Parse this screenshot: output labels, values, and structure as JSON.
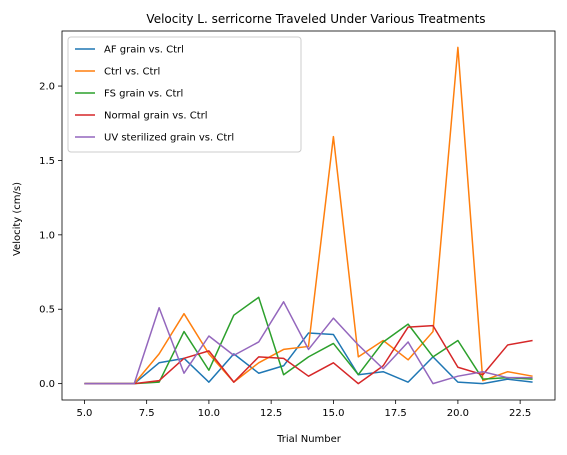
{
  "chart_data": {
    "type": "line",
    "title": "Velocity L. serricorne Traveled Under Various Treatments",
    "xlabel": "Trial Number",
    "ylabel": "Velocity (cm/s)",
    "xlim": [
      4.1,
      23.9
    ],
    "ylim": [
      -0.11,
      2.37
    ],
    "xticks": [
      5.0,
      7.5,
      10.0,
      12.5,
      15.0,
      17.5,
      20.0,
      22.5
    ],
    "xtick_labels": [
      "5.0",
      "7.5",
      "10.0",
      "12.5",
      "15.0",
      "17.5",
      "20.0",
      "22.5"
    ],
    "yticks": [
      0.0,
      0.5,
      1.0,
      1.5,
      2.0
    ],
    "ytick_labels": [
      "0.0",
      "0.5",
      "1.0",
      "1.5",
      "2.0"
    ],
    "grid": false,
    "legend_position": "top-left",
    "x": [
      5,
      6,
      7,
      8,
      9,
      10,
      11,
      12,
      13,
      14,
      15,
      16,
      17,
      18,
      19,
      20,
      21,
      22,
      23
    ],
    "series": [
      {
        "name": "AF grain vs. Ctrl",
        "color": "#1f77b4",
        "values": [
          0.0,
          0.0,
          0.0,
          0.14,
          0.17,
          0.01,
          0.2,
          0.07,
          0.12,
          0.34,
          0.33,
          0.06,
          0.08,
          0.01,
          0.18,
          0.01,
          0.0,
          0.03,
          0.01
        ]
      },
      {
        "name": "Ctrl vs. Ctrl",
        "color": "#ff7f0e",
        "values": [
          0.0,
          0.0,
          0.0,
          0.2,
          0.47,
          0.2,
          0.01,
          0.14,
          0.23,
          0.25,
          1.66,
          0.18,
          0.29,
          0.16,
          0.35,
          2.26,
          0.02,
          0.08,
          0.05
        ]
      },
      {
        "name": "FS grain vs. Ctrl",
        "color": "#2ca02c",
        "values": [
          0.0,
          0.0,
          0.0,
          0.01,
          0.35,
          0.09,
          0.46,
          0.58,
          0.06,
          0.18,
          0.27,
          0.06,
          0.28,
          0.4,
          0.18,
          0.29,
          0.03,
          0.04,
          0.03
        ]
      },
      {
        "name": "Normal grain vs. Ctrl",
        "color": "#d62728",
        "values": [
          0.0,
          0.0,
          0.0,
          0.02,
          0.17,
          0.22,
          0.01,
          0.18,
          0.17,
          0.05,
          0.14,
          0.0,
          0.12,
          0.38,
          0.39,
          0.11,
          0.06,
          0.26,
          0.29
        ]
      },
      {
        "name": "UV sterilized grain vs. Ctrl",
        "color": "#9467bd",
        "values": [
          0.0,
          0.0,
          0.0,
          0.51,
          0.07,
          0.32,
          0.19,
          0.28,
          0.55,
          0.23,
          0.44,
          0.26,
          0.1,
          0.28,
          0.0,
          0.05,
          0.08,
          0.04,
          0.04
        ]
      }
    ]
  }
}
